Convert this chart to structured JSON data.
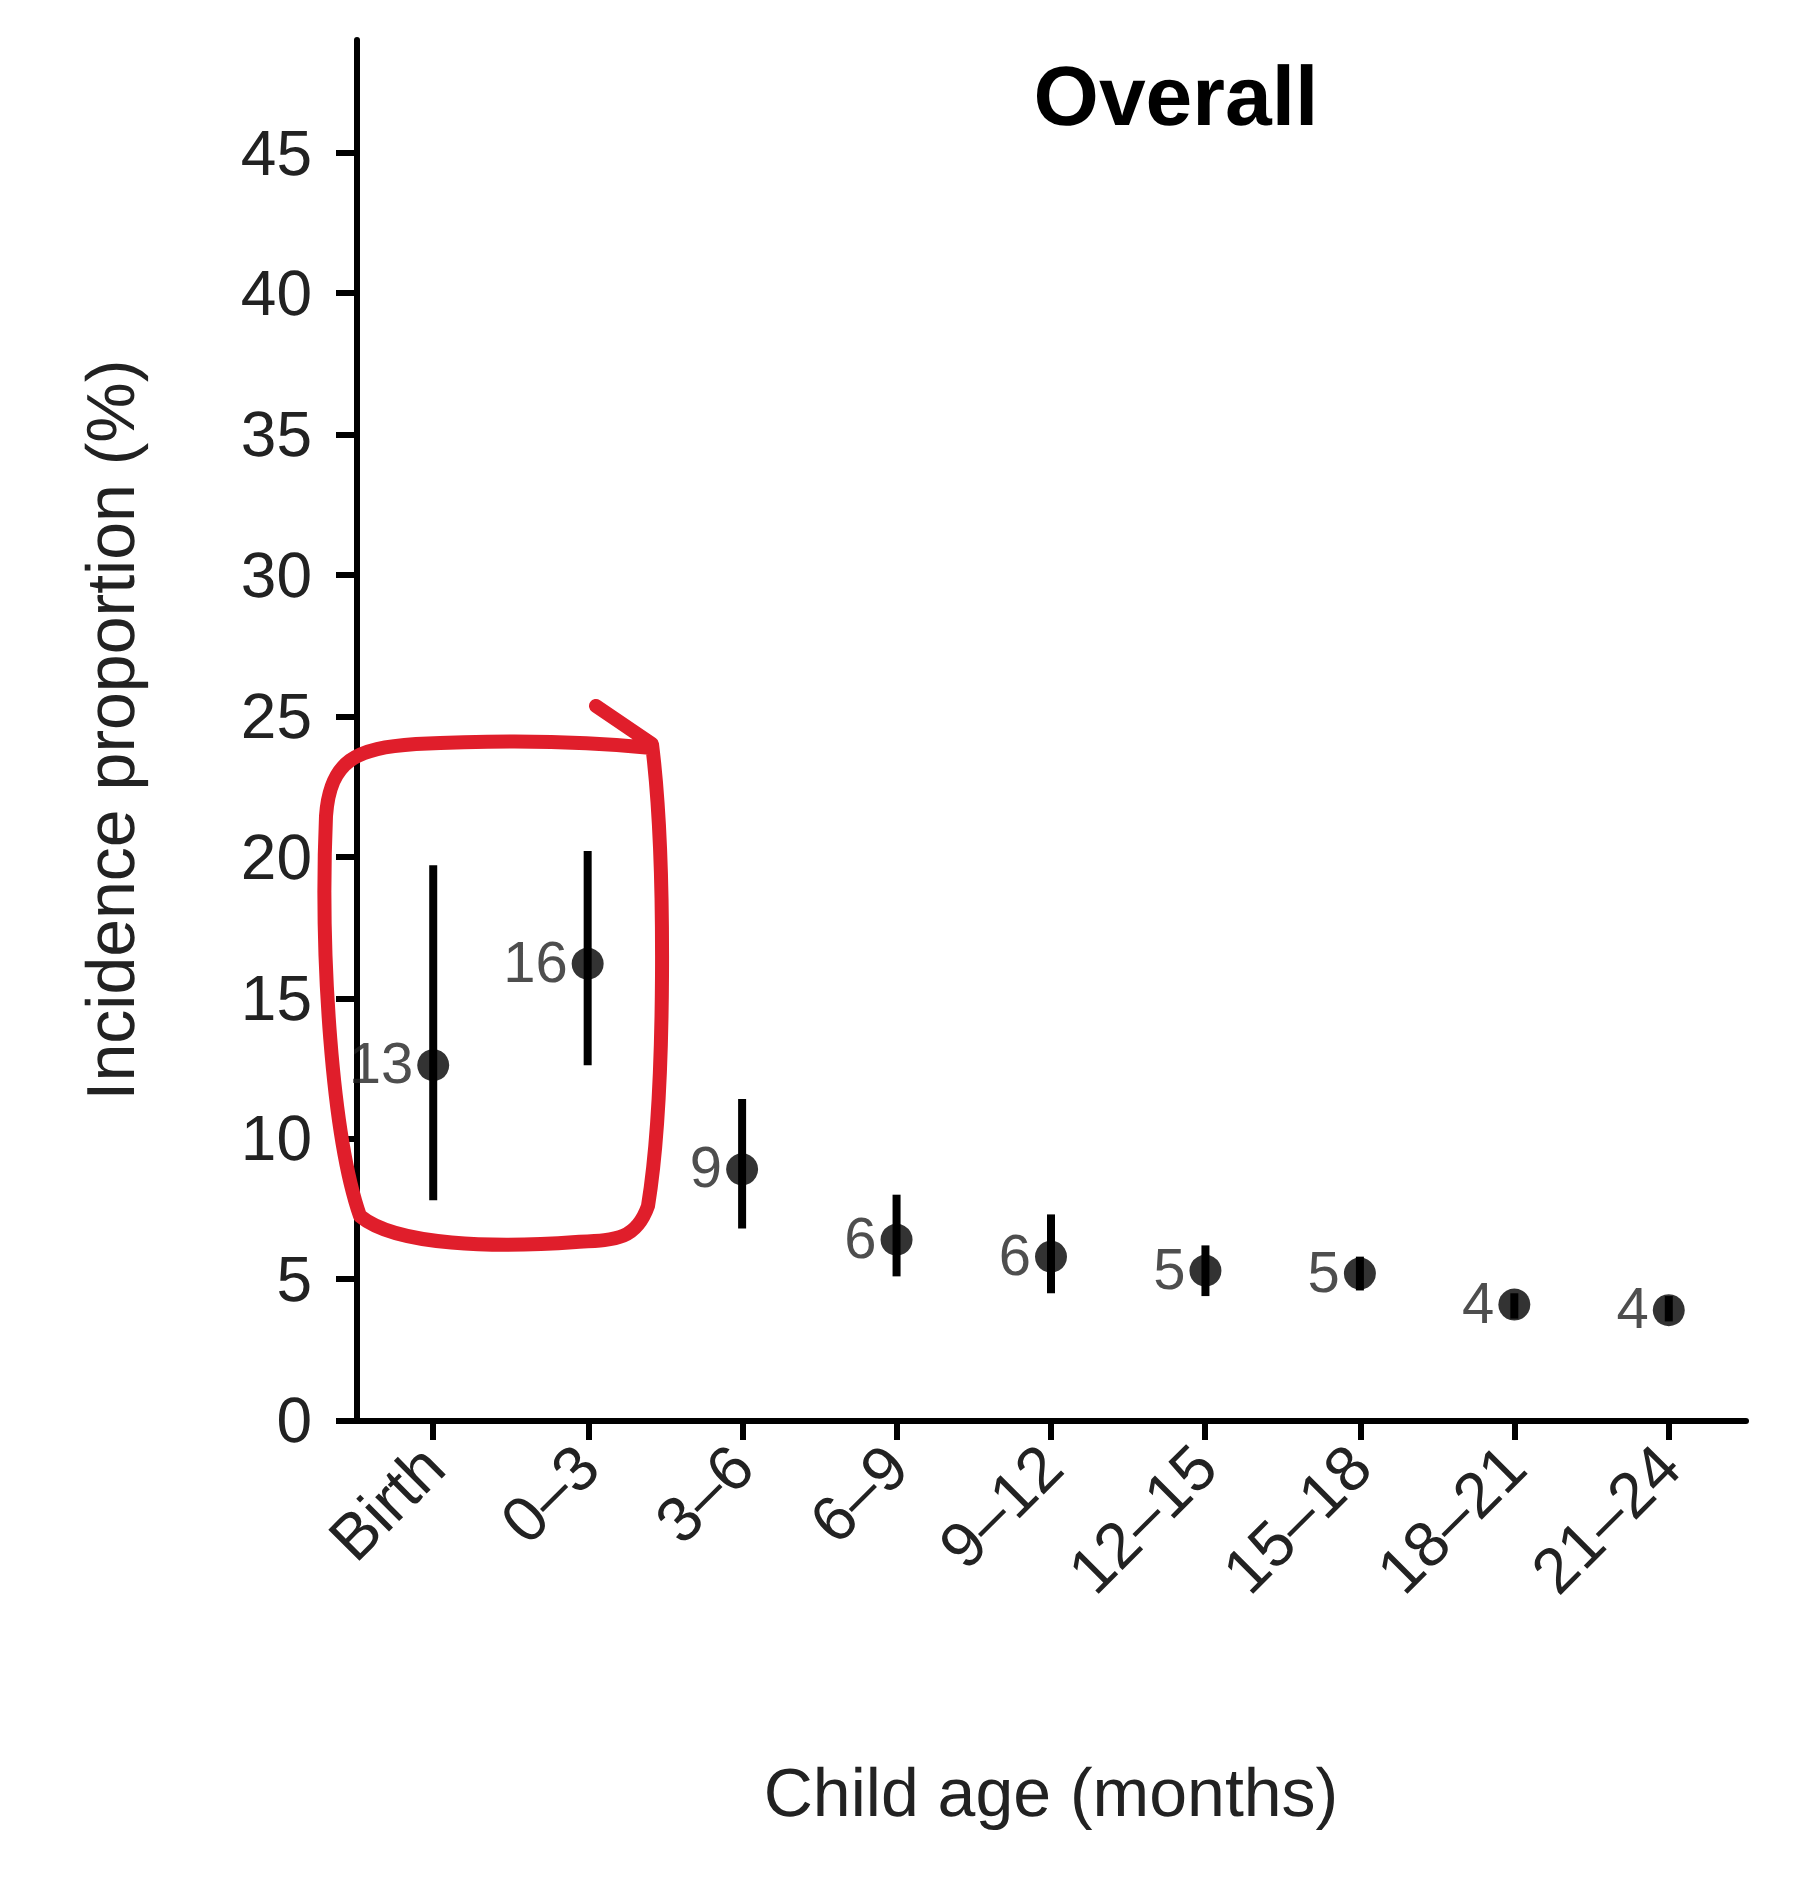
{
  "chart_data": {
    "type": "scatter",
    "title": "Overall",
    "xlabel": "Child age (months)",
    "ylabel": "Incidence proportion (%)",
    "categories": [
      "Birth",
      "0–3",
      "3–6",
      "6–9",
      "9–12",
      "12–15",
      "15–18",
      "18–21",
      "21–24"
    ],
    "values": [
      12.6,
      16.2,
      8.9,
      6.4,
      5.8,
      5.3,
      5.2,
      4.1,
      3.9
    ],
    "errors": [
      [
        7.8,
        19.7
      ],
      [
        12.6,
        20.2
      ],
      [
        6.8,
        11.4
      ],
      [
        5.1,
        8.0
      ],
      [
        4.5,
        7.3
      ],
      [
        4.4,
        6.2
      ],
      [
        4.6,
        5.8
      ],
      [
        3.6,
        4.5
      ],
      [
        3.5,
        4.4
      ]
    ],
    "value_labels": [
      "13",
      "16",
      "9",
      "6",
      "6",
      "5",
      "5",
      "4",
      "4"
    ],
    "color": "#000000",
    "marker": "circle",
    "ylim": [
      0,
      49
    ],
    "yticks": [
      0,
      5,
      10,
      15,
      20,
      25,
      30,
      35,
      40,
      45
    ],
    "grid": false
  }
}
